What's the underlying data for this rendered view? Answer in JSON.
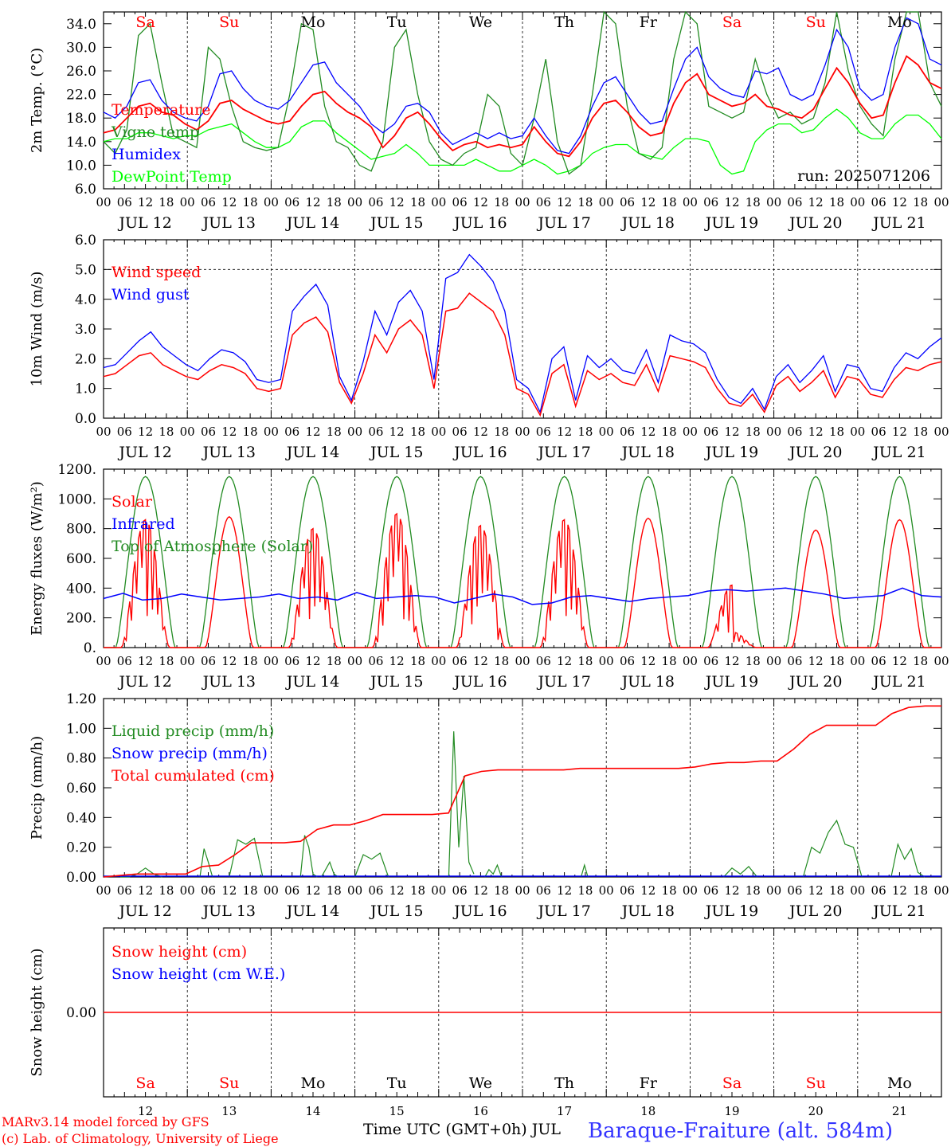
{
  "chart_data": [
    {
      "type": "line",
      "ylabel": "2m Temp. (°C)",
      "ylim": [
        6,
        36
      ],
      "yticks": [
        "6.0",
        "10.0",
        "14.0",
        "18.0",
        "22.0",
        "26.0",
        "30.0",
        "34.0"
      ],
      "grid": "dashed day lines",
      "annotation": "run: 2025071206",
      "series": [
        {
          "name": "Temperature",
          "color": "#ff0000",
          "values": [
            15.5,
            16,
            18,
            20,
            20.5,
            19,
            18.5,
            17,
            16,
            17.5,
            20.5,
            21,
            19.5,
            18.5,
            17.5,
            17,
            17.5,
            20,
            22,
            22.5,
            20.5,
            19,
            18,
            16.5,
            13,
            15,
            18,
            19,
            17,
            14.5,
            12.5,
            13.5,
            14,
            13,
            13.5,
            13,
            13.5,
            16.5,
            14,
            12,
            11.5,
            14,
            18,
            20.5,
            21,
            19,
            16.5,
            15,
            15.5,
            20.5,
            24,
            25.5,
            22,
            21,
            20,
            20.5,
            22,
            20,
            19.5,
            18.5,
            18,
            19.5,
            23,
            26.5,
            24,
            20.5,
            18,
            18.5,
            24,
            28.5,
            27,
            24,
            23
          ]
        },
        {
          "name": "Vigne temp",
          "color": "#228b22",
          "values": [
            14,
            12,
            16,
            32,
            34,
            24,
            15,
            14,
            13,
            30,
            28,
            20,
            14,
            13,
            12.5,
            13,
            22,
            34,
            33,
            20,
            14,
            13,
            10,
            9,
            14,
            30,
            33,
            22,
            14,
            11,
            10,
            12,
            13,
            22,
            20,
            12,
            10,
            18,
            28,
            14,
            8.5,
            10,
            22,
            36,
            34,
            20,
            12,
            11,
            13,
            28,
            36,
            34,
            20,
            19,
            18,
            19,
            28,
            22,
            18,
            19,
            17,
            18,
            24,
            36,
            26,
            20,
            17,
            15,
            28,
            36,
            37,
            24,
            20
          ]
        },
        {
          "name": "Humidex",
          "color": "#0000ff",
          "values": [
            19,
            18,
            20,
            24,
            24.5,
            21,
            19,
            18,
            17.5,
            20,
            25.5,
            26,
            23,
            21,
            20,
            19.5,
            21,
            24,
            27,
            27.5,
            24,
            22,
            20,
            17,
            15.5,
            17,
            20,
            20.5,
            19,
            15.5,
            13.5,
            14.5,
            15.5,
            14.5,
            15.5,
            14.5,
            15,
            18,
            15,
            12.5,
            12,
            15,
            20,
            24,
            25,
            22,
            19,
            17,
            17.5,
            23,
            28,
            30,
            25,
            23,
            22,
            21.5,
            26,
            25.5,
            26.5,
            22,
            21,
            22,
            27,
            33,
            30,
            23,
            21,
            22,
            30,
            35,
            34,
            28,
            27
          ]
        },
        {
          "name": "DewPoint Temp",
          "color": "#00ff00",
          "values": [
            14,
            14.5,
            14.5,
            15.5,
            15.5,
            15,
            14.5,
            15,
            15,
            16,
            16.5,
            17,
            15.5,
            14,
            13,
            13,
            14,
            16.5,
            17.5,
            17.5,
            15.5,
            14,
            12.5,
            11,
            11.5,
            12,
            13.5,
            12,
            10,
            10,
            10,
            10,
            11,
            10,
            9,
            9,
            10,
            11,
            10,
            8.5,
            9,
            10,
            12,
            13,
            13.5,
            13.5,
            12,
            11.5,
            11,
            13,
            14.5,
            14.5,
            14,
            10,
            8.5,
            9,
            14,
            16,
            17,
            17,
            15.5,
            16,
            18,
            19.5,
            18,
            15.5,
            14.5,
            14.5,
            17,
            18.5,
            18.5,
            17,
            14.5
          ]
        }
      ]
    },
    {
      "type": "line",
      "ylabel": "10m Wind (m/s)",
      "ylim": [
        0,
        6
      ],
      "yticks": [
        "0.0",
        "1.0",
        "2.0",
        "3.0",
        "4.0",
        "5.0",
        "6.0"
      ],
      "refline": 5,
      "series": [
        {
          "name": "Wind speed",
          "color": "#ff0000",
          "values": [
            1.4,
            1.5,
            1.8,
            2.1,
            2.2,
            1.8,
            1.6,
            1.4,
            1.3,
            1.6,
            1.8,
            1.7,
            1.5,
            1.0,
            0.9,
            1.0,
            2.8,
            3.2,
            3.4,
            2.9,
            1.2,
            0.5,
            1.5,
            2.8,
            2.2,
            3.0,
            3.3,
            2.8,
            1.0,
            3.6,
            3.7,
            4.2,
            3.9,
            3.6,
            2.8,
            1.0,
            0.8,
            0.1,
            1.5,
            1.8,
            0.4,
            1.6,
            1.3,
            1.5,
            1.2,
            1.1,
            1.8,
            0.9,
            2.1,
            2.0,
            1.9,
            1.7,
            1.0,
            0.5,
            0.4,
            0.8,
            0.2,
            1.1,
            1.4,
            0.9,
            1.2,
            1.6,
            0.7,
            1.4,
            1.3,
            0.8,
            0.7,
            1.3,
            1.7,
            1.6,
            1.8,
            1.9
          ]
        },
        {
          "name": "Wind gust",
          "color": "#0000ff",
          "values": [
            1.7,
            1.8,
            2.2,
            2.6,
            2.9,
            2.4,
            2.1,
            1.8,
            1.6,
            2.0,
            2.3,
            2.2,
            1.9,
            1.3,
            1.2,
            1.3,
            3.6,
            4.1,
            4.5,
            3.8,
            1.4,
            0.6,
            1.9,
            3.6,
            2.8,
            3.9,
            4.3,
            3.6,
            1.3,
            4.7,
            4.9,
            5.5,
            5.1,
            4.6,
            3.6,
            1.3,
            1.0,
            0.2,
            2.0,
            2.4,
            0.6,
            2.1,
            1.7,
            2.0,
            1.6,
            1.5,
            2.3,
            1.2,
            2.8,
            2.6,
            2.5,
            2.2,
            1.3,
            0.7,
            0.5,
            1.0,
            0.3,
            1.4,
            1.8,
            1.2,
            1.6,
            2.1,
            0.9,
            1.8,
            1.7,
            1.0,
            0.9,
            1.7,
            2.2,
            2.0,
            2.4,
            2.7
          ]
        }
      ]
    },
    {
      "type": "line",
      "ylabel": "Energy fluxes (W/m²)",
      "ylim": [
        0,
        1200
      ],
      "yticks": [
        "0.",
        "200.",
        "400.",
        "600.",
        "800.",
        "1000.",
        "1200."
      ],
      "series": [
        {
          "name": "Solar",
          "color": "#ff0000",
          "peaks": [
            860,
            880,
            800,
            900,
            820,
            860,
            870,
            420,
            790,
            860
          ]
        },
        {
          "name": "Infrared",
          "color": "#0000ff",
          "values": [
            330,
            365,
            320,
            330,
            360,
            340,
            320,
            330,
            340,
            360,
            330,
            340,
            320,
            370,
            330,
            340,
            350,
            340,
            300,
            330,
            360,
            340,
            290,
            300,
            340,
            350,
            330,
            310,
            330,
            340,
            350,
            380,
            390,
            380,
            390,
            400,
            380,
            360,
            330,
            340,
            350,
            400,
            350,
            340
          ]
        },
        {
          "name": "Top of Atmosphere (Solar)",
          "color": "#228b22",
          "peak": 1150
        }
      ]
    },
    {
      "type": "line",
      "ylabel": "Precip (mm/h)",
      "ylim": [
        0,
        1.2
      ],
      "yticks": [
        "0.00",
        "0.20",
        "0.40",
        "0.60",
        "0.80",
        "1.00",
        "1.20"
      ],
      "series": [
        {
          "name": "Liquid precip (mm/h)",
          "color": "#228b22"
        },
        {
          "name": "Snow precip (mm/h)",
          "color": "#0000ff"
        },
        {
          "name": "Total cumulated (cm)",
          "color": "#ff0000",
          "values": [
            0,
            0.01,
            0.02,
            0.02,
            0.02,
            0.02,
            0.07,
            0.08,
            0.15,
            0.23,
            0.23,
            0.23,
            0.24,
            0.32,
            0.35,
            0.35,
            0.38,
            0.42,
            0.42,
            0.42,
            0.42,
            0.43,
            0.68,
            0.71,
            0.72,
            0.72,
            0.72,
            0.72,
            0.72,
            0.73,
            0.73,
            0.73,
            0.73,
            0.73,
            0.73,
            0.73,
            0.74,
            0.76,
            0.77,
            0.77,
            0.78,
            0.78,
            0.86,
            0.96,
            1.02,
            1.02,
            1.02,
            1.02,
            1.1,
            1.14,
            1.15,
            1.15
          ]
        }
      ]
    },
    {
      "type": "line",
      "ylabel": "Snow height (cm)",
      "yticks": [
        "0.00"
      ],
      "series": [
        {
          "name": "Snow height (cm)",
          "color": "#ff0000",
          "values": [
            0,
            0
          ]
        },
        {
          "name": "Snow height (cm W.E.)",
          "color": "#0000ff"
        }
      ]
    }
  ],
  "days": {
    "top_names": [
      "Sa",
      "Su",
      "Mo",
      "Tu",
      "We",
      "Th",
      "Fr",
      "Sa",
      "Su",
      "Mo"
    ],
    "bottom_names": [
      "Sa",
      "Su",
      "Mo",
      "Tu",
      "We",
      "Th",
      "Fr",
      "Sa",
      "Su",
      "Mo"
    ],
    "weekend_flags": [
      true,
      true,
      false,
      false,
      false,
      false,
      false,
      true,
      true,
      false
    ],
    "dates": [
      "JUL 12",
      "JUL 13",
      "JUL 14",
      "JUL 15",
      "JUL 16",
      "JUL 17",
      "JUL 18",
      "JUL 19",
      "JUL 20",
      "JUL 21"
    ],
    "day_numbers": [
      "12",
      "13",
      "14",
      "15",
      "16",
      "17",
      "18",
      "19",
      "20",
      "21"
    ],
    "hour_ticks": [
      "00",
      "06",
      "12",
      "18"
    ],
    "final_tick": "00"
  },
  "footer": {
    "model": "MARv3.14 model forced by GFS",
    "credit": "(c) Lab. of Climatology, University of Liege",
    "axis_label": "Time UTC (GMT+0h) JUL",
    "station": "Baraque-Fraiture (alt. 584m)"
  },
  "colors": {
    "red": "#ff0000",
    "green": "#228b22",
    "blue": "#0000ff",
    "lime": "#00ff00",
    "station": "#3333ff"
  }
}
